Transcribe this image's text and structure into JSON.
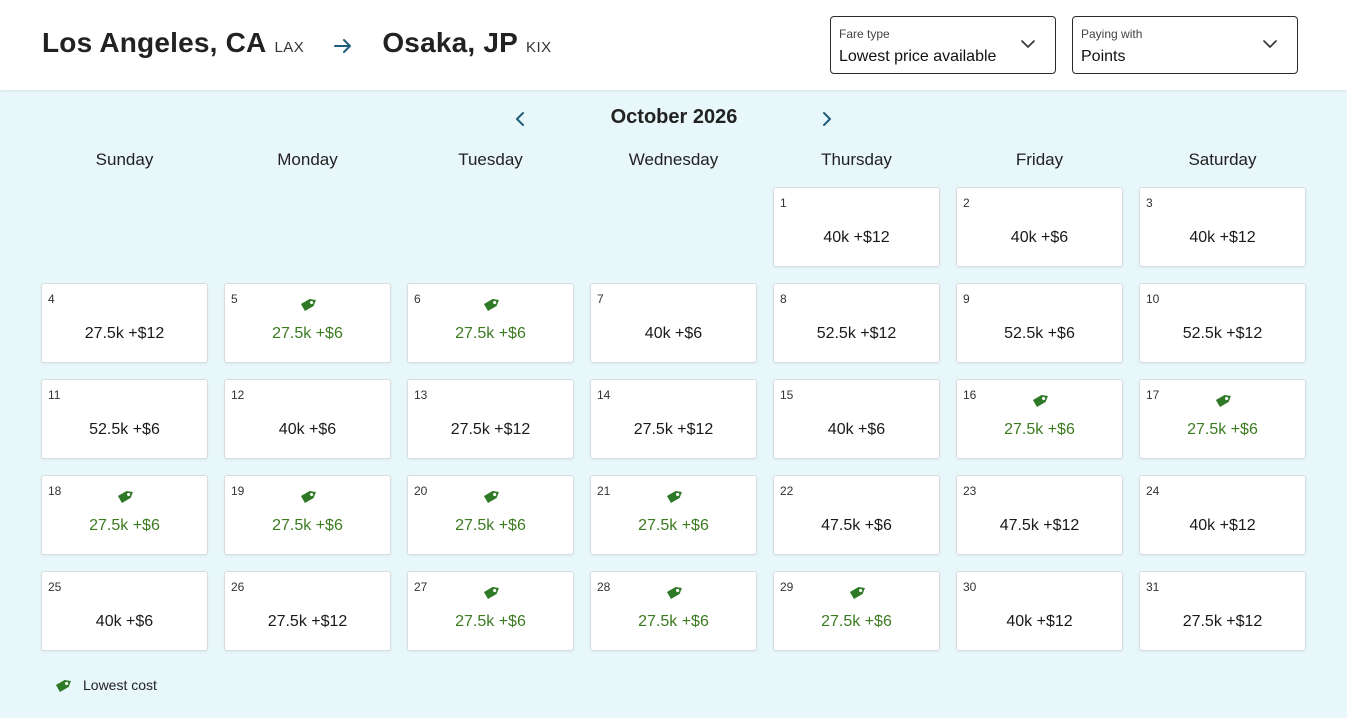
{
  "route": {
    "origin_city": "Los Angeles, CA",
    "origin_code": "LAX",
    "destination_city": "Osaka, JP",
    "destination_code": "KIX"
  },
  "fare_type": {
    "label": "Fare type",
    "value": "Lowest price available"
  },
  "paying_with": {
    "label": "Paying with",
    "value": "Points"
  },
  "calendar": {
    "month_title": "October 2026",
    "weekdays": [
      "Sunday",
      "Monday",
      "Tuesday",
      "Wednesday",
      "Thursday",
      "Friday",
      "Saturday"
    ],
    "first_weekday_index": 4,
    "days": [
      {
        "day": "1",
        "price": "40k +$12",
        "lowest": false
      },
      {
        "day": "2",
        "price": "40k +$6",
        "lowest": false
      },
      {
        "day": "3",
        "price": "40k +$12",
        "lowest": false
      },
      {
        "day": "4",
        "price": "27.5k +$12",
        "lowest": false
      },
      {
        "day": "5",
        "price": "27.5k +$6",
        "lowest": true
      },
      {
        "day": "6",
        "price": "27.5k +$6",
        "lowest": true
      },
      {
        "day": "7",
        "price": "40k +$6",
        "lowest": false
      },
      {
        "day": "8",
        "price": "52.5k +$12",
        "lowest": false
      },
      {
        "day": "9",
        "price": "52.5k +$6",
        "lowest": false
      },
      {
        "day": "10",
        "price": "52.5k +$12",
        "lowest": false
      },
      {
        "day": "11",
        "price": "52.5k +$6",
        "lowest": false
      },
      {
        "day": "12",
        "price": "40k +$6",
        "lowest": false
      },
      {
        "day": "13",
        "price": "27.5k +$12",
        "lowest": false
      },
      {
        "day": "14",
        "price": "27.5k +$12",
        "lowest": false
      },
      {
        "day": "15",
        "price": "40k +$6",
        "lowest": false
      },
      {
        "day": "16",
        "price": "27.5k +$6",
        "lowest": true
      },
      {
        "day": "17",
        "price": "27.5k +$6",
        "lowest": true
      },
      {
        "day": "18",
        "price": "27.5k +$6",
        "lowest": true
      },
      {
        "day": "19",
        "price": "27.5k +$6",
        "lowest": true
      },
      {
        "day": "20",
        "price": "27.5k +$6",
        "lowest": true
      },
      {
        "day": "21",
        "price": "27.5k +$6",
        "lowest": true
      },
      {
        "day": "22",
        "price": "47.5k +$6",
        "lowest": false
      },
      {
        "day": "23",
        "price": "47.5k +$12",
        "lowest": false
      },
      {
        "day": "24",
        "price": "40k +$12",
        "lowest": false
      },
      {
        "day": "25",
        "price": "40k +$6",
        "lowest": false
      },
      {
        "day": "26",
        "price": "27.5k +$12",
        "lowest": false
      },
      {
        "day": "27",
        "price": "27.5k +$6",
        "lowest": true
      },
      {
        "day": "28",
        "price": "27.5k +$6",
        "lowest": true
      },
      {
        "day": "29",
        "price": "27.5k +$6",
        "lowest": true
      },
      {
        "day": "30",
        "price": "40k +$12",
        "lowest": false
      },
      {
        "day": "31",
        "price": "27.5k +$12",
        "lowest": false
      }
    ]
  },
  "legend": {
    "icon": "price-tag-icon",
    "label": "Lowest cost"
  },
  "colors": {
    "lowest_price_green": "#3c7b1f",
    "tag_green": "#2f7a26",
    "arrow_teal": "#1f5e7a",
    "calendar_background": "#e8f7fa"
  }
}
